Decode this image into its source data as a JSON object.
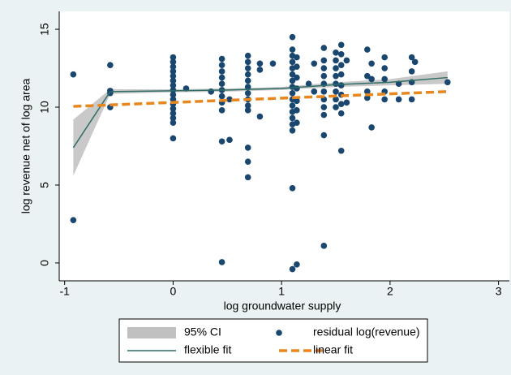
{
  "chart_data": {
    "type": "scatter",
    "xlabel": "log groundwater supply",
    "ylabel": "log revenue net of log area",
    "xlim": [
      -1.05,
      3.1
    ],
    "xticks": [
      -1,
      0,
      1,
      2,
      3
    ],
    "ylim": [
      -1.15,
      16.15
    ],
    "yticks": [
      0,
      5,
      10,
      15
    ],
    "series": [
      {
        "name": "95% CI",
        "type": "area",
        "color": "#c0c0c0",
        "x": [
          -0.92,
          -0.58,
          0,
          0.5,
          1,
          1.5,
          2,
          2.53
        ],
        "lower": [
          5.6,
          10.85,
          10.95,
          11.0,
          11.1,
          11.3,
          11.4,
          11.5
        ],
        "upper": [
          9.2,
          11.15,
          11.15,
          11.2,
          11.3,
          11.6,
          11.8,
          12.3
        ]
      },
      {
        "name": "residual log(revenue)",
        "type": "scatter",
        "color": "#1a476f",
        "x": [
          -0.92,
          -0.92,
          -0.58,
          -0.58,
          -0.58,
          -0.58,
          0,
          0,
          0,
          0,
          0,
          0,
          0,
          0,
          0,
          0,
          0,
          0,
          0,
          0,
          0,
          0,
          0.12,
          0.35,
          0.45,
          0.45,
          0.45,
          0.45,
          0.45,
          0.45,
          0.45,
          0.45,
          0.45,
          0.45,
          0.45,
          0.52,
          0.52,
          0.69,
          0.69,
          0.69,
          0.69,
          0.69,
          0.69,
          0.69,
          0.69,
          0.69,
          0.69,
          0.69,
          0.69,
          0.69,
          0.8,
          0.8,
          0.8,
          0.92,
          1.1,
          1.1,
          1.1,
          1.1,
          1.1,
          1.1,
          1.1,
          1.1,
          1.1,
          1.1,
          1.1,
          1.1,
          1.1,
          1.1,
          1.1,
          1.1,
          1.1,
          1.14,
          1.14,
          1.14,
          1.14,
          1.14,
          1.14,
          1.14,
          1.14,
          1.25,
          1.3,
          1.3,
          1.39,
          1.39,
          1.39,
          1.39,
          1.39,
          1.39,
          1.39,
          1.39,
          1.39,
          1.39,
          1.39,
          1.5,
          1.5,
          1.5,
          1.5,
          1.5,
          1.5,
          1.5,
          1.5,
          1.55,
          1.55,
          1.55,
          1.55,
          1.55,
          1.55,
          1.55,
          1.55,
          1.55,
          1.6,
          1.6,
          1.79,
          1.79,
          1.79,
          1.79,
          1.83,
          1.83,
          1.83,
          1.95,
          1.95,
          1.95,
          1.95,
          1.95,
          2.08,
          2.08,
          2.2,
          2.2,
          2.2,
          2.2,
          2.23,
          2.53
        ],
        "values": [
          12.1,
          2.75,
          12.7,
          11.05,
          10.9,
          10.0,
          13.2,
          12.9,
          12.6,
          12.3,
          12.0,
          11.7,
          11.4,
          11.1,
          10.8,
          10.5,
          10.2,
          9.9,
          9.6,
          9.3,
          9.0,
          8.0,
          11.2,
          11.0,
          13.1,
          12.7,
          12.3,
          11.9,
          11.5,
          11.1,
          10.7,
          10.3,
          9.8,
          7.8,
          0.05,
          10.5,
          7.9,
          13.3,
          12.9,
          12.5,
          12.1,
          11.7,
          11.3,
          10.9,
          10.5,
          10.1,
          9.8,
          7.4,
          6.5,
          5.5,
          12.8,
          12.4,
          9.4,
          12.8,
          14.5,
          13.7,
          13.3,
          12.9,
          12.5,
          12.1,
          11.7,
          11.3,
          10.9,
          10.5,
          10.1,
          9.7,
          9.3,
          8.9,
          8.5,
          4.8,
          -0.4,
          13.2,
          12.6,
          11.9,
          11.2,
          10.4,
          9.8,
          9.0,
          -0.1,
          11.5,
          12.8,
          11.0,
          13.8,
          13.0,
          12.5,
          12.0,
          11.5,
          11.0,
          10.5,
          10.0,
          9.5,
          8.2,
          1.1,
          13.5,
          13.0,
          12.5,
          12.0,
          11.5,
          11.0,
          10.5,
          10.0,
          14.0,
          13.4,
          12.7,
          12.1,
          11.4,
          10.8,
          10.2,
          9.6,
          7.2,
          13.0,
          10.3,
          13.7,
          12.0,
          11.0,
          10.6,
          12.8,
          11.8,
          8.7,
          13.2,
          12.5,
          11.8,
          11.0,
          10.5,
          11.5,
          10.5,
          13.2,
          12.3,
          11.6,
          10.5,
          12.9,
          11.6
        ]
      },
      {
        "name": "flexible fit",
        "type": "line",
        "color": "#2d6d66",
        "x": [
          -0.92,
          -0.58,
          0,
          0.5,
          1,
          1.5,
          2,
          2.53
        ],
        "values": [
          7.4,
          11.0,
          11.05,
          11.1,
          11.2,
          11.45,
          11.6,
          11.9
        ]
      },
      {
        "name": "linear fit",
        "type": "line",
        "color": "#e8871e",
        "dash": true,
        "x": [
          -0.92,
          2.53
        ],
        "values": [
          10.05,
          11.0
        ]
      }
    ]
  }
}
